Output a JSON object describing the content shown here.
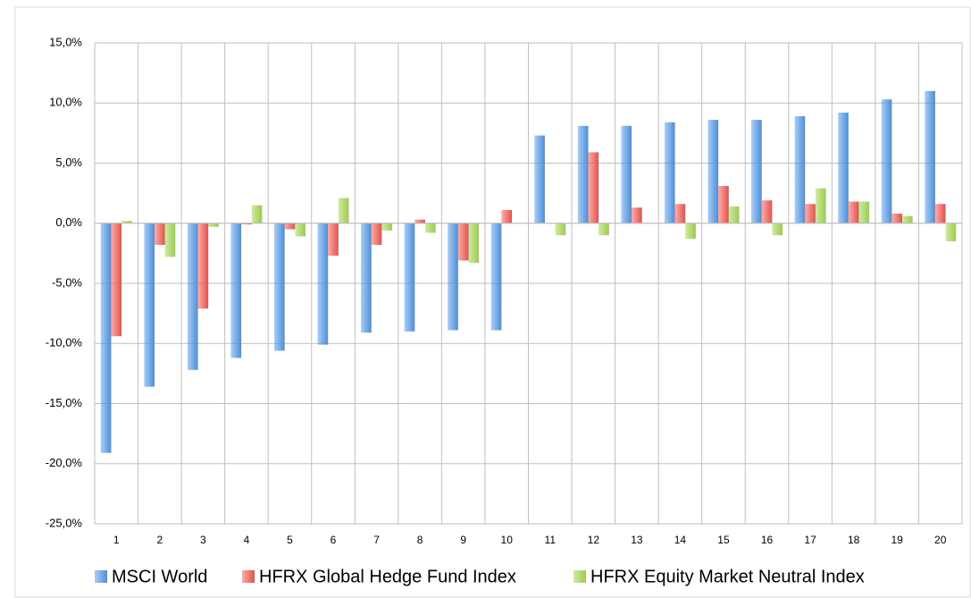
{
  "chart_data": {
    "type": "bar",
    "categories": [
      "1",
      "2",
      "3",
      "4",
      "5",
      "6",
      "7",
      "8",
      "9",
      "10",
      "11",
      "12",
      "13",
      "14",
      "15",
      "16",
      "17",
      "18",
      "19",
      "20"
    ],
    "series": [
      {
        "name": "MSCI World",
        "color": "#4a8fdc",
        "values": [
          -19.1,
          -13.6,
          -12.2,
          -11.2,
          -10.6,
          -10.1,
          -9.1,
          -9.0,
          -8.9,
          -8.9,
          7.3,
          8.1,
          8.1,
          8.4,
          8.6,
          8.6,
          8.9,
          9.2,
          10.3,
          11.0
        ]
      },
      {
        "name": "HFRX Global Hedge Fund Index",
        "color": "#e8504a",
        "values": [
          -9.4,
          -1.8,
          -7.1,
          -0.1,
          -0.5,
          -2.7,
          -1.8,
          0.3,
          -3.1,
          1.1,
          0.0,
          5.9,
          1.3,
          1.6,
          3.1,
          1.9,
          1.6,
          1.8,
          0.8,
          1.6
        ]
      },
      {
        "name": "HFRX Equity Market Neutral Index",
        "color": "#9ccc48",
        "values": [
          0.2,
          -2.8,
          -0.3,
          1.5,
          -1.1,
          2.1,
          -0.6,
          -0.8,
          -3.3,
          0.0,
          -1.0,
          -1.0,
          0.0,
          -1.3,
          1.4,
          -1.0,
          2.9,
          1.8,
          0.6,
          -1.5
        ]
      }
    ],
    "ylim": [
      -25,
      15
    ],
    "yticks": [
      {
        "value": -25,
        "label": "-25,0%"
      },
      {
        "value": -20,
        "label": "-20,0%"
      },
      {
        "value": -15,
        "label": "-15,0%"
      },
      {
        "value": -10,
        "label": "-10,0%"
      },
      {
        "value": -5,
        "label": "-5,0%"
      },
      {
        "value": 0,
        "label": "0,0%"
      },
      {
        "value": 5,
        "label": "5,0%"
      },
      {
        "value": 10,
        "label": "10,0%"
      },
      {
        "value": 15,
        "label": "15,0%"
      }
    ],
    "grid": true,
    "legend": "bottom"
  }
}
